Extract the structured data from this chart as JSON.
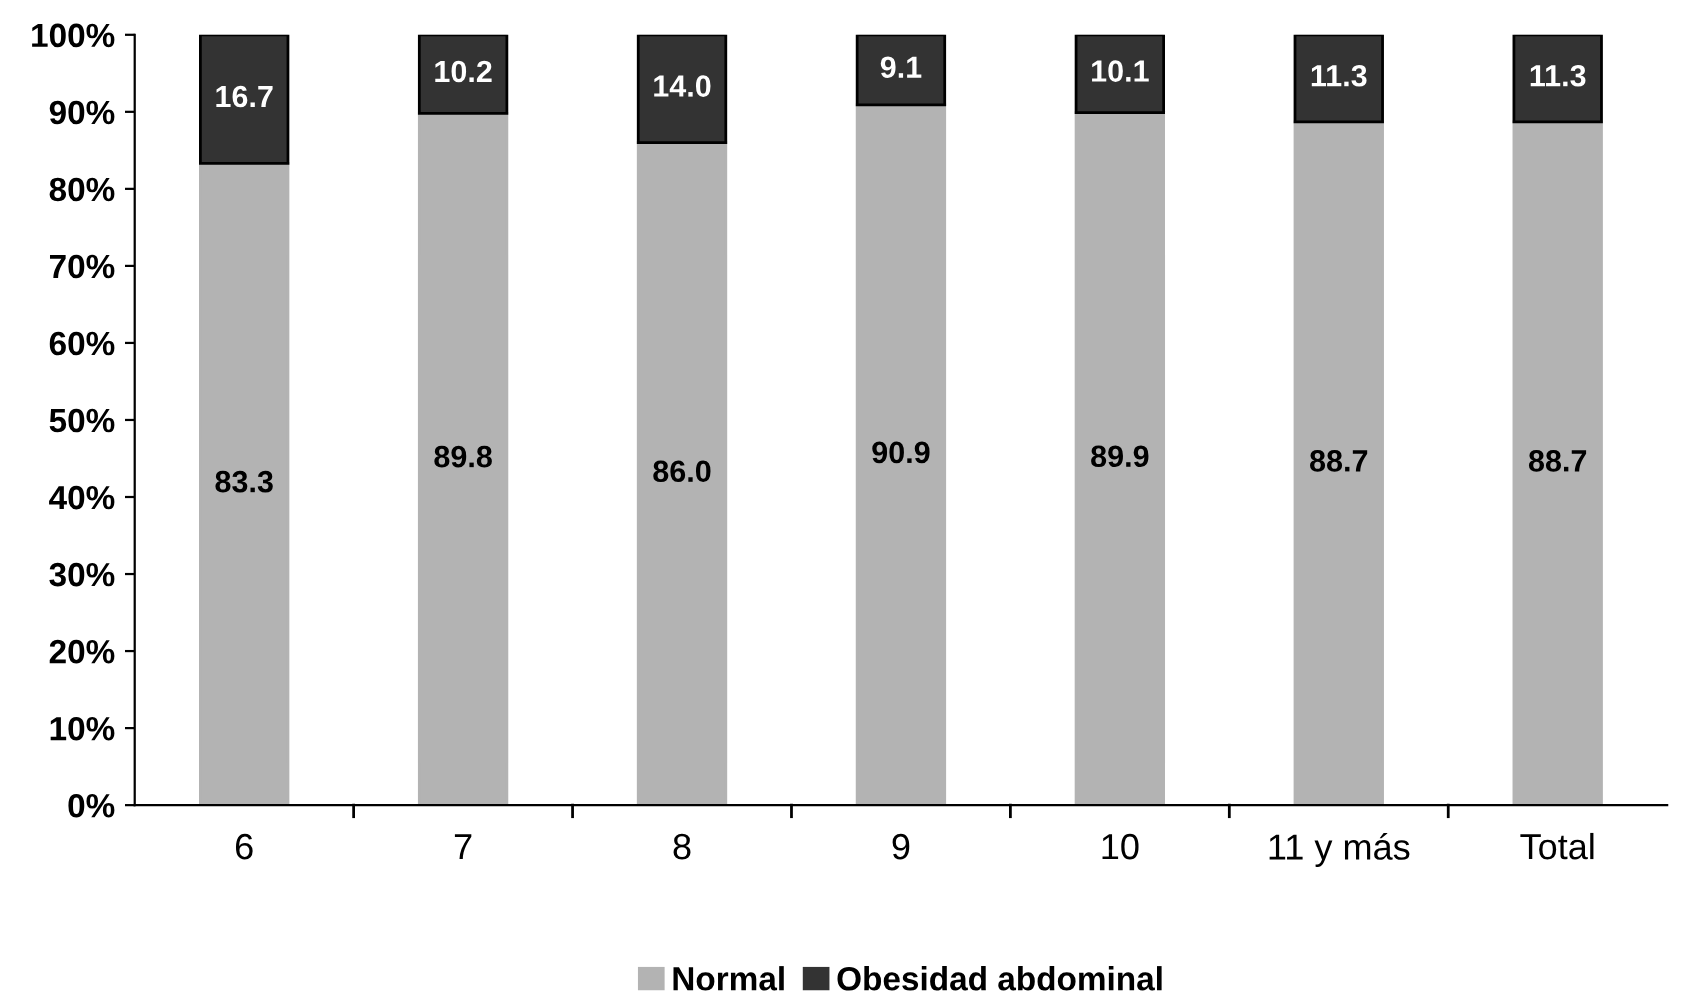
{
  "chart_data": {
    "type": "bar",
    "stacked": true,
    "categories": [
      "6",
      "7",
      "8",
      "9",
      "10",
      "11 y más",
      "Total"
    ],
    "series": [
      {
        "name": "Normal",
        "color": "#b3b3b3",
        "values": [
          83.3,
          89.8,
          86.0,
          90.9,
          89.9,
          88.7,
          88.7
        ],
        "value_labels": [
          "83.3",
          "89.8",
          "86.0",
          "90.9",
          "89.9",
          "88.7",
          "88.7"
        ]
      },
      {
        "name": "Obesidad abdominal",
        "color": "#333333",
        "values": [
          16.7,
          10.2,
          14.0,
          9.1,
          10.1,
          11.3,
          11.3
        ],
        "value_labels": [
          "16.7",
          "10.2",
          "14.0",
          "9.1",
          "10.1",
          "11.3",
          "11.3"
        ]
      }
    ],
    "ylim": [
      0,
      100
    ],
    "yticks": [
      {
        "value": 0,
        "label": "0%"
      },
      {
        "value": 10,
        "label": "10%"
      },
      {
        "value": 20,
        "label": "20%"
      },
      {
        "value": 30,
        "label": "30%"
      },
      {
        "value": 40,
        "label": "40%"
      },
      {
        "value": 50,
        "label": "50%"
      },
      {
        "value": 60,
        "label": "60%"
      },
      {
        "value": 70,
        "label": "70%"
      },
      {
        "value": 80,
        "label": "80%"
      },
      {
        "value": 90,
        "label": "90%"
      },
      {
        "value": 100,
        "label": "100%"
      }
    ],
    "grid": false,
    "legend": "bottom"
  }
}
